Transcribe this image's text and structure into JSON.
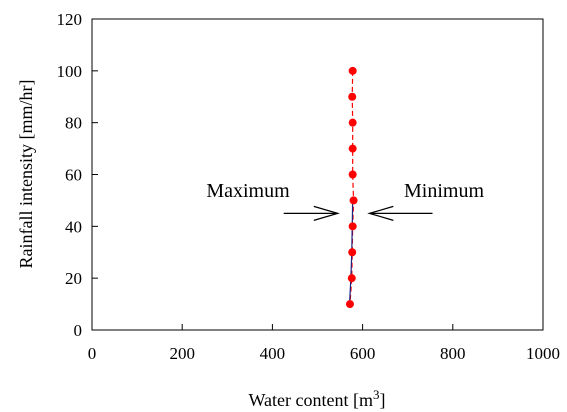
{
  "chart_data": {
    "type": "scatter",
    "xlabel": "Water content [m",
    "xlabel_superscript": "3",
    "xlabel_suffix": "]",
    "ylabel": "Rainfall intensity [mm/hr]",
    "xlim": [
      0,
      1000
    ],
    "ylim": [
      0,
      120
    ],
    "x_ticks": [
      0,
      200,
      400,
      600,
      800,
      1000
    ],
    "y_ticks": [
      0,
      20,
      40,
      60,
      80,
      100,
      120
    ],
    "grid": false,
    "series": [
      {
        "color": "#ff0000",
        "marker": "circle",
        "line": "dashed",
        "points": [
          {
            "x": 578,
            "y": 100
          },
          {
            "x": 577,
            "y": 90
          },
          {
            "x": 578,
            "y": 80
          },
          {
            "x": 578,
            "y": 70
          },
          {
            "x": 578,
            "y": 60
          },
          {
            "x": 580,
            "y": 50
          },
          {
            "x": 578,
            "y": 40
          },
          {
            "x": 577,
            "y": 30
          },
          {
            "x": 576,
            "y": 20
          },
          {
            "x": 572,
            "y": 10
          }
        ]
      },
      {
        "color": "#1a237e",
        "marker": "none",
        "line": "solid",
        "points": [
          {
            "x": 571,
            "y": 10
          },
          {
            "x": 574,
            "y": 20
          },
          {
            "x": 576,
            "y": 30
          },
          {
            "x": 577,
            "y": 40
          },
          {
            "x": 578,
            "y": 50
          }
        ]
      }
    ],
    "annotations": [
      {
        "label": "Maximum",
        "arrow_from_x": 425,
        "arrow_to_x": 545,
        "arrow_y": 45
      },
      {
        "label": "Minimum",
        "arrow_from_x": 755,
        "arrow_to_x": 615,
        "arrow_y": 45
      }
    ]
  }
}
